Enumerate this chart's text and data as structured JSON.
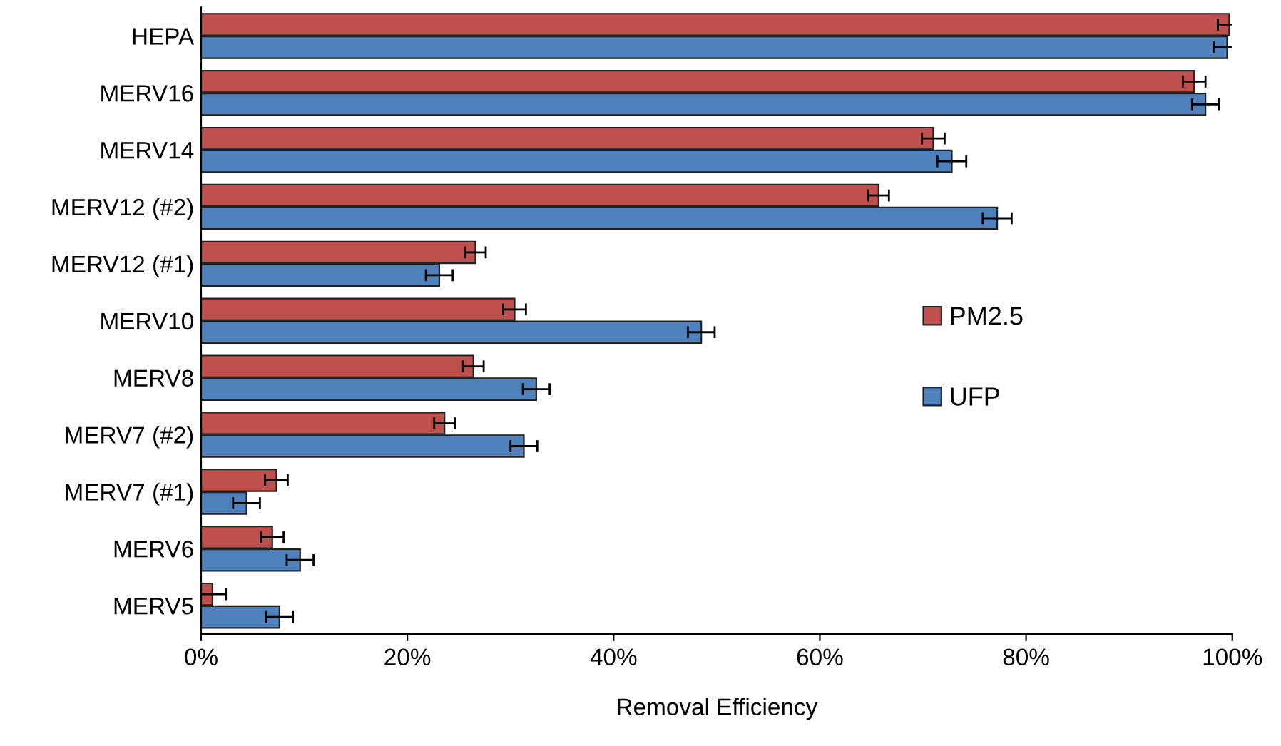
{
  "chart_data": {
    "type": "bar",
    "orientation": "horizontal",
    "xlabel": "Removal Efficiency",
    "categories": [
      "HEPA",
      "MERV16",
      "MERV14",
      "MERV12 (#2)",
      "MERV12 (#1)",
      "MERV10",
      "MERV8",
      "MERV7 (#2)",
      "MERV7 (#1)",
      "MERV6",
      "MERV5"
    ],
    "series": [
      {
        "name": "PM2.5",
        "color": "#c0504d",
        "values": [
          99.7,
          96.3,
          71.0,
          65.7,
          26.6,
          30.4,
          26.4,
          23.6,
          7.3,
          6.9,
          1.1
        ],
        "errors": [
          1.1,
          1.1,
          1.1,
          1.0,
          1.0,
          1.1,
          1.0,
          1.0,
          1.1,
          1.1,
          1.3
        ]
      },
      {
        "name": "UFP",
        "color": "#4f81bd",
        "values": [
          99.5,
          97.4,
          72.8,
          77.2,
          23.1,
          48.5,
          32.5,
          31.3,
          4.4,
          9.6,
          7.6
        ],
        "errors": [
          1.3,
          1.3,
          1.4,
          1.4,
          1.3,
          1.3,
          1.3,
          1.3,
          1.3,
          1.3,
          1.3
        ]
      }
    ],
    "xlim": [
      0,
      100
    ],
    "xticks": [
      {
        "value": 0,
        "label": "0%"
      },
      {
        "value": 20,
        "label": "20%"
      },
      {
        "value": 40,
        "label": "40%"
      },
      {
        "value": 60,
        "label": "60%"
      },
      {
        "value": 80,
        "label": "80%"
      },
      {
        "value": 100,
        "label": "100%"
      }
    ],
    "grid": false,
    "legend": "right"
  }
}
